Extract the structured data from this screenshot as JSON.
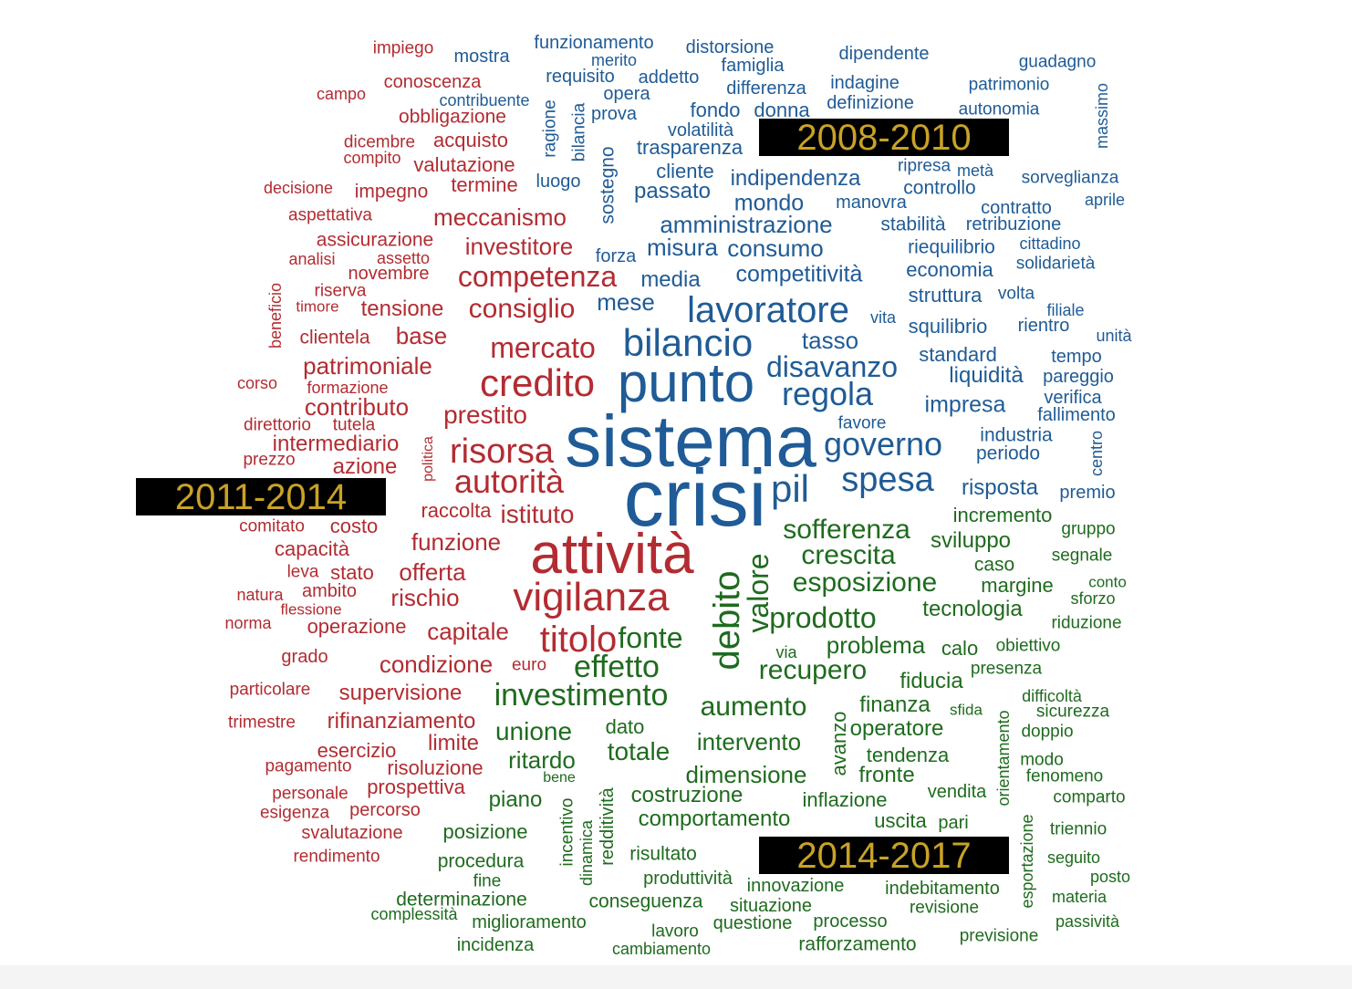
{
  "colors": {
    "blue": "#1f5b96",
    "red": "#b22c32",
    "green": "#1e6b1e",
    "badge_bg": "#000000",
    "badge_text": "#c9a227"
  },
  "periods": {
    "p1": "2008-2010",
    "p2": "2011-2014",
    "p3": "2014-2017"
  },
  "words": [
    {
      "t": "sistema",
      "c": "blue"
    },
    {
      "t": "crisi",
      "c": "blue"
    },
    {
      "t": "punto",
      "c": "blue"
    },
    {
      "t": "bilancio",
      "c": "blue"
    },
    {
      "t": "lavoratore",
      "c": "blue"
    },
    {
      "t": "pil",
      "c": "blue"
    },
    {
      "t": "spesa",
      "c": "blue"
    },
    {
      "t": "governo",
      "c": "blue"
    },
    {
      "t": "regola",
      "c": "blue"
    },
    {
      "t": "disavanzo",
      "c": "blue"
    },
    {
      "t": "tasso",
      "c": "blue"
    },
    {
      "t": "mese",
      "c": "blue"
    },
    {
      "t": "media",
      "c": "blue"
    },
    {
      "t": "misura",
      "c": "blue"
    },
    {
      "t": "consumo",
      "c": "blue"
    },
    {
      "t": "competitività",
      "c": "blue"
    },
    {
      "t": "amministrazione",
      "c": "blue"
    },
    {
      "t": "mondo",
      "c": "blue"
    },
    {
      "t": "indipendenza",
      "c": "blue"
    },
    {
      "t": "passato",
      "c": "blue"
    },
    {
      "t": "cliente",
      "c": "blue"
    },
    {
      "t": "trasparenza",
      "c": "blue"
    },
    {
      "t": "volatilità",
      "c": "blue"
    },
    {
      "t": "fondo",
      "c": "blue"
    },
    {
      "t": "donna",
      "c": "blue"
    },
    {
      "t": "definizione",
      "c": "blue"
    },
    {
      "t": "indagine",
      "c": "blue"
    },
    {
      "t": "dipendente",
      "c": "blue"
    },
    {
      "t": "differenza",
      "c": "blue"
    },
    {
      "t": "famiglia",
      "c": "blue"
    },
    {
      "t": "distorsione",
      "c": "blue"
    },
    {
      "t": "funzionamento",
      "c": "blue"
    },
    {
      "t": "merito",
      "c": "blue"
    },
    {
      "t": "mostra",
      "c": "blue"
    },
    {
      "t": "requisito",
      "c": "blue"
    },
    {
      "t": "addetto",
      "c": "blue"
    },
    {
      "t": "opera",
      "c": "blue"
    },
    {
      "t": "contribuente",
      "c": "blue"
    },
    {
      "t": "prova",
      "c": "blue"
    },
    {
      "t": "luogo",
      "c": "blue"
    },
    {
      "t": "forza",
      "c": "blue"
    },
    {
      "t": "guadagno",
      "c": "blue"
    },
    {
      "t": "patrimonio",
      "c": "blue"
    },
    {
      "t": "autonomia",
      "c": "blue"
    },
    {
      "t": "ripresa",
      "c": "blue"
    },
    {
      "t": "metà",
      "c": "blue"
    },
    {
      "t": "sorveglianza",
      "c": "blue"
    },
    {
      "t": "controllo",
      "c": "blue"
    },
    {
      "t": "manovra",
      "c": "blue"
    },
    {
      "t": "contratto",
      "c": "blue"
    },
    {
      "t": "aprile",
      "c": "blue"
    },
    {
      "t": "stabilità",
      "c": "blue"
    },
    {
      "t": "retribuzione",
      "c": "blue"
    },
    {
      "t": "riequilibrio",
      "c": "blue"
    },
    {
      "t": "cittadino",
      "c": "blue"
    },
    {
      "t": "economia",
      "c": "blue"
    },
    {
      "t": "solidarietà",
      "c": "blue"
    },
    {
      "t": "struttura",
      "c": "blue"
    },
    {
      "t": "volta",
      "c": "blue"
    },
    {
      "t": "filiale",
      "c": "blue"
    },
    {
      "t": "vita",
      "c": "blue"
    },
    {
      "t": "squilibrio",
      "c": "blue"
    },
    {
      "t": "rientro",
      "c": "blue"
    },
    {
      "t": "unità",
      "c": "blue"
    },
    {
      "t": "standard",
      "c": "blue"
    },
    {
      "t": "tempo",
      "c": "blue"
    },
    {
      "t": "liquidità",
      "c": "blue"
    },
    {
      "t": "pareggio",
      "c": "blue"
    },
    {
      "t": "impresa",
      "c": "blue"
    },
    {
      "t": "verifica",
      "c": "blue"
    },
    {
      "t": "fallimento",
      "c": "blue"
    },
    {
      "t": "favore",
      "c": "blue"
    },
    {
      "t": "industria",
      "c": "blue"
    },
    {
      "t": "periodo",
      "c": "blue"
    },
    {
      "t": "risposta",
      "c": "blue"
    },
    {
      "t": "premio",
      "c": "blue"
    },
    {
      "t": "ragione",
      "c": "blue"
    },
    {
      "t": "bilancia",
      "c": "blue"
    },
    {
      "t": "sostegno",
      "c": "blue"
    },
    {
      "t": "massimo",
      "c": "blue"
    },
    {
      "t": "centro",
      "c": "blue"
    },
    {
      "t": "attività",
      "c": "red"
    },
    {
      "t": "credito",
      "c": "red"
    },
    {
      "t": "vigilanza",
      "c": "red"
    },
    {
      "t": "risorsa",
      "c": "red"
    },
    {
      "t": "autorità",
      "c": "red"
    },
    {
      "t": "titolo",
      "c": "red"
    },
    {
      "t": "mercato",
      "c": "red"
    },
    {
      "t": "competenza",
      "c": "red"
    },
    {
      "t": "consiglio",
      "c": "red"
    },
    {
      "t": "prestito",
      "c": "red"
    },
    {
      "t": "istituto",
      "c": "red"
    },
    {
      "t": "funzione",
      "c": "red"
    },
    {
      "t": "offerta",
      "c": "red"
    },
    {
      "t": "rischio",
      "c": "red"
    },
    {
      "t": "capitale",
      "c": "red"
    },
    {
      "t": "condizione",
      "c": "red"
    },
    {
      "t": "euro",
      "c": "red"
    },
    {
      "t": "supervisione",
      "c": "red"
    },
    {
      "t": "rifinanziamento",
      "c": "red"
    },
    {
      "t": "limite",
      "c": "red"
    },
    {
      "t": "esercizio",
      "c": "red"
    },
    {
      "t": "risoluzione",
      "c": "red"
    },
    {
      "t": "prospettiva",
      "c": "red"
    },
    {
      "t": "percorso",
      "c": "red"
    },
    {
      "t": "svalutazione",
      "c": "red"
    },
    {
      "t": "rendimento",
      "c": "red"
    },
    {
      "t": "meccanismo",
      "c": "red"
    },
    {
      "t": "investitore",
      "c": "red"
    },
    {
      "t": "tensione",
      "c": "red"
    },
    {
      "t": "base",
      "c": "red"
    },
    {
      "t": "patrimoniale",
      "c": "red"
    },
    {
      "t": "contributo",
      "c": "red"
    },
    {
      "t": "intermediario",
      "c": "red"
    },
    {
      "t": "azione",
      "c": "red"
    },
    {
      "t": "raccolta",
      "c": "red"
    },
    {
      "t": "costo",
      "c": "red"
    },
    {
      "t": "capacità",
      "c": "red"
    },
    {
      "t": "stato",
      "c": "red"
    },
    {
      "t": "ambito",
      "c": "red"
    },
    {
      "t": "operazione",
      "c": "red"
    },
    {
      "t": "grado",
      "c": "red"
    },
    {
      "t": "particolare",
      "c": "red"
    },
    {
      "t": "trimestre",
      "c": "red"
    },
    {
      "t": "pagamento",
      "c": "red"
    },
    {
      "t": "personale",
      "c": "red"
    },
    {
      "t": "esigenza",
      "c": "red"
    },
    {
      "t": "impiego",
      "c": "red"
    },
    {
      "t": "conoscenza",
      "c": "red"
    },
    {
      "t": "campo",
      "c": "red"
    },
    {
      "t": "obbligazione",
      "c": "red"
    },
    {
      "t": "dicembre",
      "c": "red"
    },
    {
      "t": "acquisto",
      "c": "red"
    },
    {
      "t": "compito",
      "c": "red"
    },
    {
      "t": "valutazione",
      "c": "red"
    },
    {
      "t": "decisione",
      "c": "red"
    },
    {
      "t": "impegno",
      "c": "red"
    },
    {
      "t": "termine",
      "c": "red"
    },
    {
      "t": "aspettativa",
      "c": "red"
    },
    {
      "t": "assicurazione",
      "c": "red"
    },
    {
      "t": "analisi",
      "c": "red"
    },
    {
      "t": "assetto",
      "c": "red"
    },
    {
      "t": "novembre",
      "c": "red"
    },
    {
      "t": "riserva",
      "c": "red"
    },
    {
      "t": "timore",
      "c": "red"
    },
    {
      "t": "clientela",
      "c": "red"
    },
    {
      "t": "corso",
      "c": "red"
    },
    {
      "t": "formazione",
      "c": "red"
    },
    {
      "t": "direttorio",
      "c": "red"
    },
    {
      "t": "tutela",
      "c": "red"
    },
    {
      "t": "prezzo",
      "c": "red"
    },
    {
      "t": "comitato",
      "c": "red"
    },
    {
      "t": "leva",
      "c": "red"
    },
    {
      "t": "natura",
      "c": "red"
    },
    {
      "t": "flessione",
      "c": "red"
    },
    {
      "t": "norma",
      "c": "red"
    },
    {
      "t": "beneficio",
      "c": "red"
    },
    {
      "t": "politica",
      "c": "red"
    },
    {
      "t": "debito",
      "c": "green"
    },
    {
      "t": "valore",
      "c": "green"
    },
    {
      "t": "sofferenza",
      "c": "green"
    },
    {
      "t": "crescita",
      "c": "green"
    },
    {
      "t": "esposizione",
      "c": "green"
    },
    {
      "t": "prodotto",
      "c": "green"
    },
    {
      "t": "problema",
      "c": "green"
    },
    {
      "t": "recupero",
      "c": "green"
    },
    {
      "t": "effetto",
      "c": "green"
    },
    {
      "t": "fonte",
      "c": "green"
    },
    {
      "t": "investimento",
      "c": "green"
    },
    {
      "t": "aumento",
      "c": "green"
    },
    {
      "t": "unione",
      "c": "green"
    },
    {
      "t": "dato",
      "c": "green"
    },
    {
      "t": "totale",
      "c": "green"
    },
    {
      "t": "intervento",
      "c": "green"
    },
    {
      "t": "ritardo",
      "c": "green"
    },
    {
      "t": "dimensione",
      "c": "green"
    },
    {
      "t": "costruzione",
      "c": "green"
    },
    {
      "t": "comportamento",
      "c": "green"
    },
    {
      "t": "piano",
      "c": "green"
    },
    {
      "t": "posizione",
      "c": "green"
    },
    {
      "t": "procedura",
      "c": "green"
    },
    {
      "t": "fine",
      "c": "green"
    },
    {
      "t": "determinazione",
      "c": "green"
    },
    {
      "t": "complessità",
      "c": "green"
    },
    {
      "t": "miglioramento",
      "c": "green"
    },
    {
      "t": "incidenza",
      "c": "green"
    },
    {
      "t": "lavoro",
      "c": "green"
    },
    {
      "t": "cambiamento",
      "c": "green"
    },
    {
      "t": "conseguenza",
      "c": "green"
    },
    {
      "t": "produttività",
      "c": "green"
    },
    {
      "t": "risultato",
      "c": "green"
    },
    {
      "t": "situazione",
      "c": "green"
    },
    {
      "t": "questione",
      "c": "green"
    },
    {
      "t": "innovazione",
      "c": "green"
    },
    {
      "t": "processo",
      "c": "green"
    },
    {
      "t": "rafforzamento",
      "c": "green"
    },
    {
      "t": "indebitamento",
      "c": "green"
    },
    {
      "t": "revisione",
      "c": "green"
    },
    {
      "t": "previsione",
      "c": "green"
    },
    {
      "t": "passività",
      "c": "green"
    },
    {
      "t": "materia",
      "c": "green"
    },
    {
      "t": "posto",
      "c": "green"
    },
    {
      "t": "seguito",
      "c": "green"
    },
    {
      "t": "triennio",
      "c": "green"
    },
    {
      "t": "comparto",
      "c": "green"
    },
    {
      "t": "fenomeno",
      "c": "green"
    },
    {
      "t": "modo",
      "c": "green"
    },
    {
      "t": "doppio",
      "c": "green"
    },
    {
      "t": "sicurezza",
      "c": "green"
    },
    {
      "t": "difficoltà",
      "c": "green"
    },
    {
      "t": "sfida",
      "c": "green"
    },
    {
      "t": "presenza",
      "c": "green"
    },
    {
      "t": "obiettivo",
      "c": "green"
    },
    {
      "t": "calo",
      "c": "green"
    },
    {
      "t": "fiducia",
      "c": "green"
    },
    {
      "t": "via",
      "c": "green"
    },
    {
      "t": "finanza",
      "c": "green"
    },
    {
      "t": "operatore",
      "c": "green"
    },
    {
      "t": "tendenza",
      "c": "green"
    },
    {
      "t": "fronte",
      "c": "green"
    },
    {
      "t": "inflazione",
      "c": "green"
    },
    {
      "t": "uscita",
      "c": "green"
    },
    {
      "t": "pari",
      "c": "green"
    },
    {
      "t": "vendita",
      "c": "green"
    },
    {
      "t": "tecnologia",
      "c": "green"
    },
    {
      "t": "margine",
      "c": "green"
    },
    {
      "t": "caso",
      "c": "green"
    },
    {
      "t": "sviluppo",
      "c": "green"
    },
    {
      "t": "incremento",
      "c": "green"
    },
    {
      "t": "gruppo",
      "c": "green"
    },
    {
      "t": "segnale",
      "c": "green"
    },
    {
      "t": "conto",
      "c": "green"
    },
    {
      "t": "sforzo",
      "c": "green"
    },
    {
      "t": "riduzione",
      "c": "green"
    },
    {
      "t": "bene",
      "c": "green"
    },
    {
      "t": "avanzo",
      "c": "green"
    },
    {
      "t": "incentivo",
      "c": "green"
    },
    {
      "t": "dinamica",
      "c": "green"
    },
    {
      "t": "redditività",
      "c": "green"
    },
    {
      "t": "orientamento",
      "c": "green"
    },
    {
      "t": "esportazione",
      "c": "green"
    }
  ]
}
